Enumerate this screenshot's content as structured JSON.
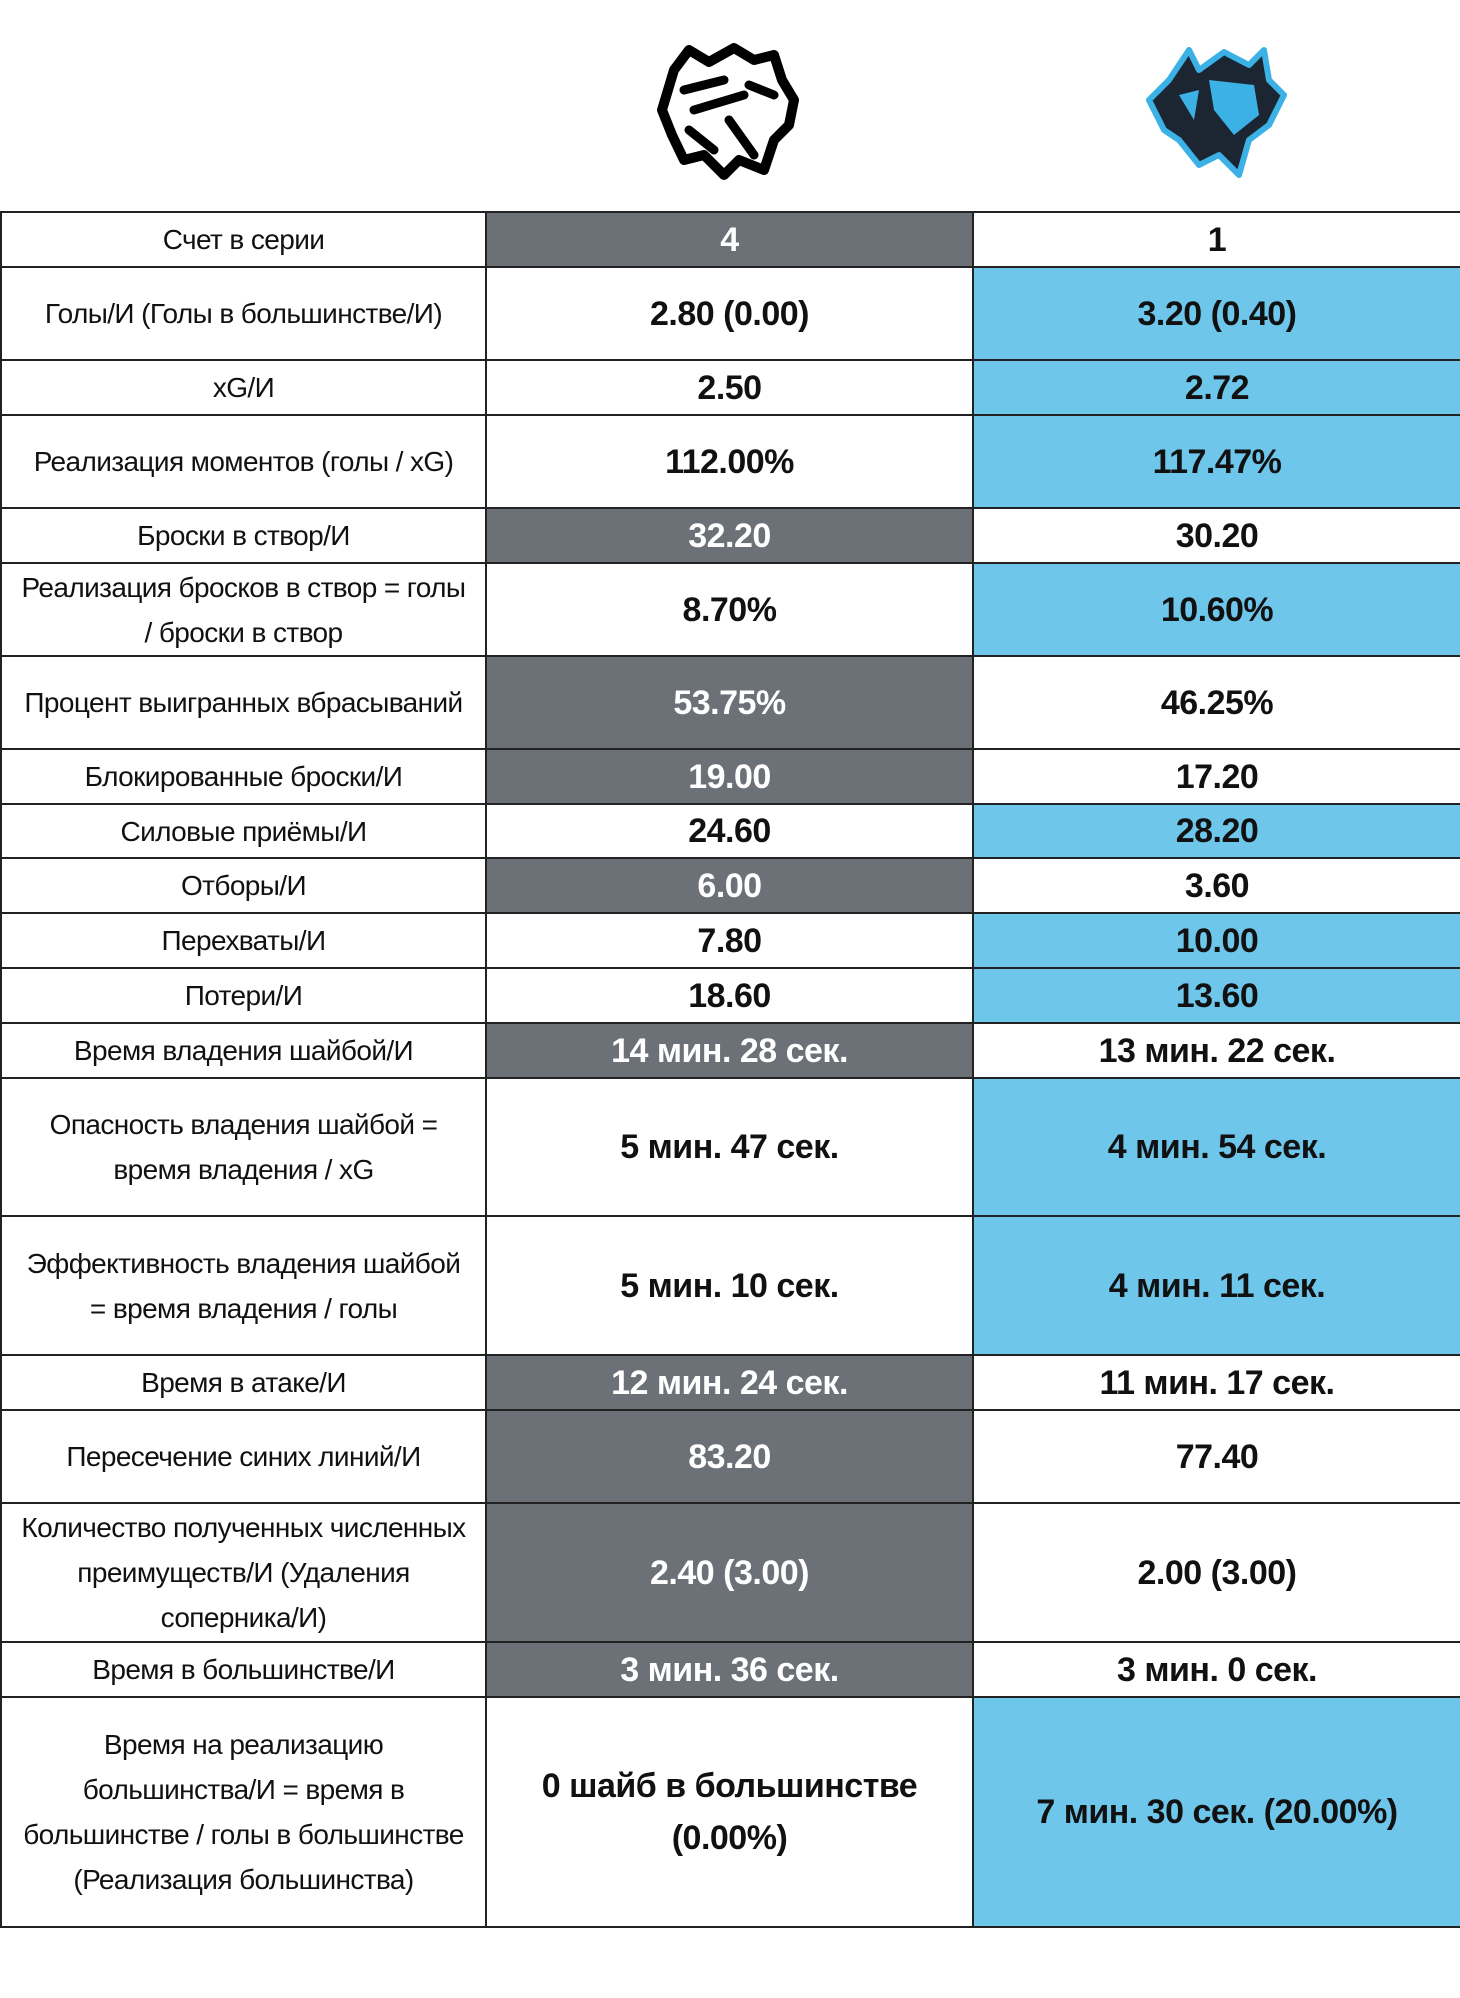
{
  "colors": {
    "leader_left": "#6c7178",
    "leader_right": "#6ec6ea"
  },
  "teams": {
    "left": {
      "logo": "bear-logo-icon"
    },
    "right": {
      "logo": "bison-logo-icon"
    }
  },
  "rows": [
    {
      "label": "Счет в серии",
      "left": "4",
      "right": "1",
      "highlight": "left"
    },
    {
      "label": "Голы/И (Голы в большинстве/И)",
      "left": "2.80 (0.00)",
      "right": "3.20 (0.40)",
      "highlight": "right"
    },
    {
      "label": "xG/И",
      "left": "2.50",
      "right": "2.72",
      "highlight": "right"
    },
    {
      "label": "Реализация моментов (голы / xG)",
      "left": "112.00%",
      "right": "117.47%",
      "highlight": "right"
    },
    {
      "label": "Броски в створ/И",
      "left": "32.20",
      "right": "30.20",
      "highlight": "left"
    },
    {
      "label": "Реализация бросков в створ = голы / броски в створ",
      "left": "8.70%",
      "right": "10.60%",
      "highlight": "right"
    },
    {
      "label": "Процент выигранных вбрасываний",
      "left": "53.75%",
      "right": "46.25%",
      "highlight": "left"
    },
    {
      "label": "Блокированные броски/И",
      "left": "19.00",
      "right": "17.20",
      "highlight": "left"
    },
    {
      "label": "Силовые приёмы/И",
      "left": "24.60",
      "right": "28.20",
      "highlight": "right"
    },
    {
      "label": "Отборы/И",
      "left": "6.00",
      "right": "3.60",
      "highlight": "left"
    },
    {
      "label": "Перехваты/И",
      "left": "7.80",
      "right": "10.00",
      "highlight": "right"
    },
    {
      "label": "Потери/И",
      "left": "18.60",
      "right": "13.60",
      "highlight": "right"
    },
    {
      "label": "Время владения шайбой/И",
      "left": "14 мин. 28 сек.",
      "right": "13 мин. 22 сек.",
      "highlight": "left"
    },
    {
      "label": "Опасность владения шайбой = время владения / xG",
      "left": "5 мин. 47 сек.",
      "right": "4 мин. 54 сек.",
      "highlight": "right"
    },
    {
      "label": "Эффективность владения шайбой = время владения / голы",
      "left": "5 мин. 10 сек.",
      "right": "4 мин. 11 сек.",
      "highlight": "right"
    },
    {
      "label": "Время в атаке/И",
      "left": "12 мин. 24 сек.",
      "right": "11 мин. 17 сек.",
      "highlight": "left"
    },
    {
      "label": "Пересечение синих линий/И",
      "left": "83.20",
      "right": "77.40",
      "highlight": "left"
    },
    {
      "label": "Количество полученных численных преимуществ/И (Удаления соперника/И)",
      "left": "2.40 (3.00)",
      "right": "2.00 (3.00)",
      "highlight": "left"
    },
    {
      "label": "Время в большинстве/И",
      "left": "3 мин. 36 сек.",
      "right": "3 мин. 0 сек.",
      "highlight": "left"
    },
    {
      "label": "Время на реализацию большинства/И = время в большинстве / голы в большинстве (Реализация большинства)",
      "left": "0 шайб в большинстве (0.00%)",
      "right": "7 мин. 30 сек. (20.00%)",
      "highlight": "right"
    }
  ]
}
